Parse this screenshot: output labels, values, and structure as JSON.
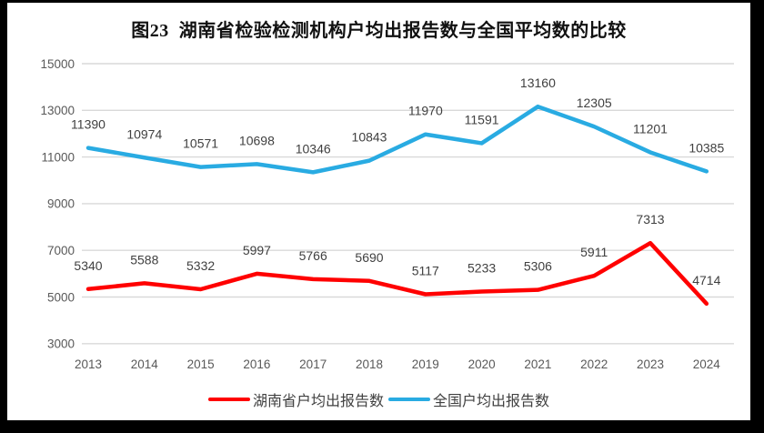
{
  "title": "图23  湖南省检验检测机构户均出报告数与全国平均数的比较",
  "chart_data": {
    "type": "line",
    "title": "图23  湖南省检验检测机构户均出报告数与全国平均数的比较",
    "categories": [
      "2013",
      "2014",
      "2015",
      "2016",
      "2017",
      "2018",
      "2019",
      "2020",
      "2021",
      "2022",
      "2023",
      "2024"
    ],
    "series": [
      {
        "name": "湖南省户均出报告数",
        "color": "#FF0000",
        "values": [
          5340,
          5588,
          5332,
          5997,
          5766,
          5690,
          5117,
          5233,
          5306,
          5911,
          7313,
          4714
        ]
      },
      {
        "name": "全国户均出报告数",
        "color": "#29ABE2",
        "values": [
          11390,
          10974,
          10571,
          10698,
          10346,
          10843,
          11970,
          11591,
          13160,
          12305,
          11201,
          10385
        ]
      }
    ],
    "xlabel": "",
    "ylabel": "",
    "ylim": [
      3000,
      15000
    ],
    "yticks": [
      3000,
      5000,
      7000,
      9000,
      11000,
      13000,
      15000
    ],
    "grid": true,
    "data_labels": true,
    "legend_position": "bottom"
  },
  "colors": {
    "grid": "#D9D9D9",
    "tick_label": "#595959",
    "data_label": "#404040",
    "series_red": "#FF0000",
    "series_blue": "#29ABE2",
    "background": "#FFFFFF",
    "frame": "#000000"
  }
}
